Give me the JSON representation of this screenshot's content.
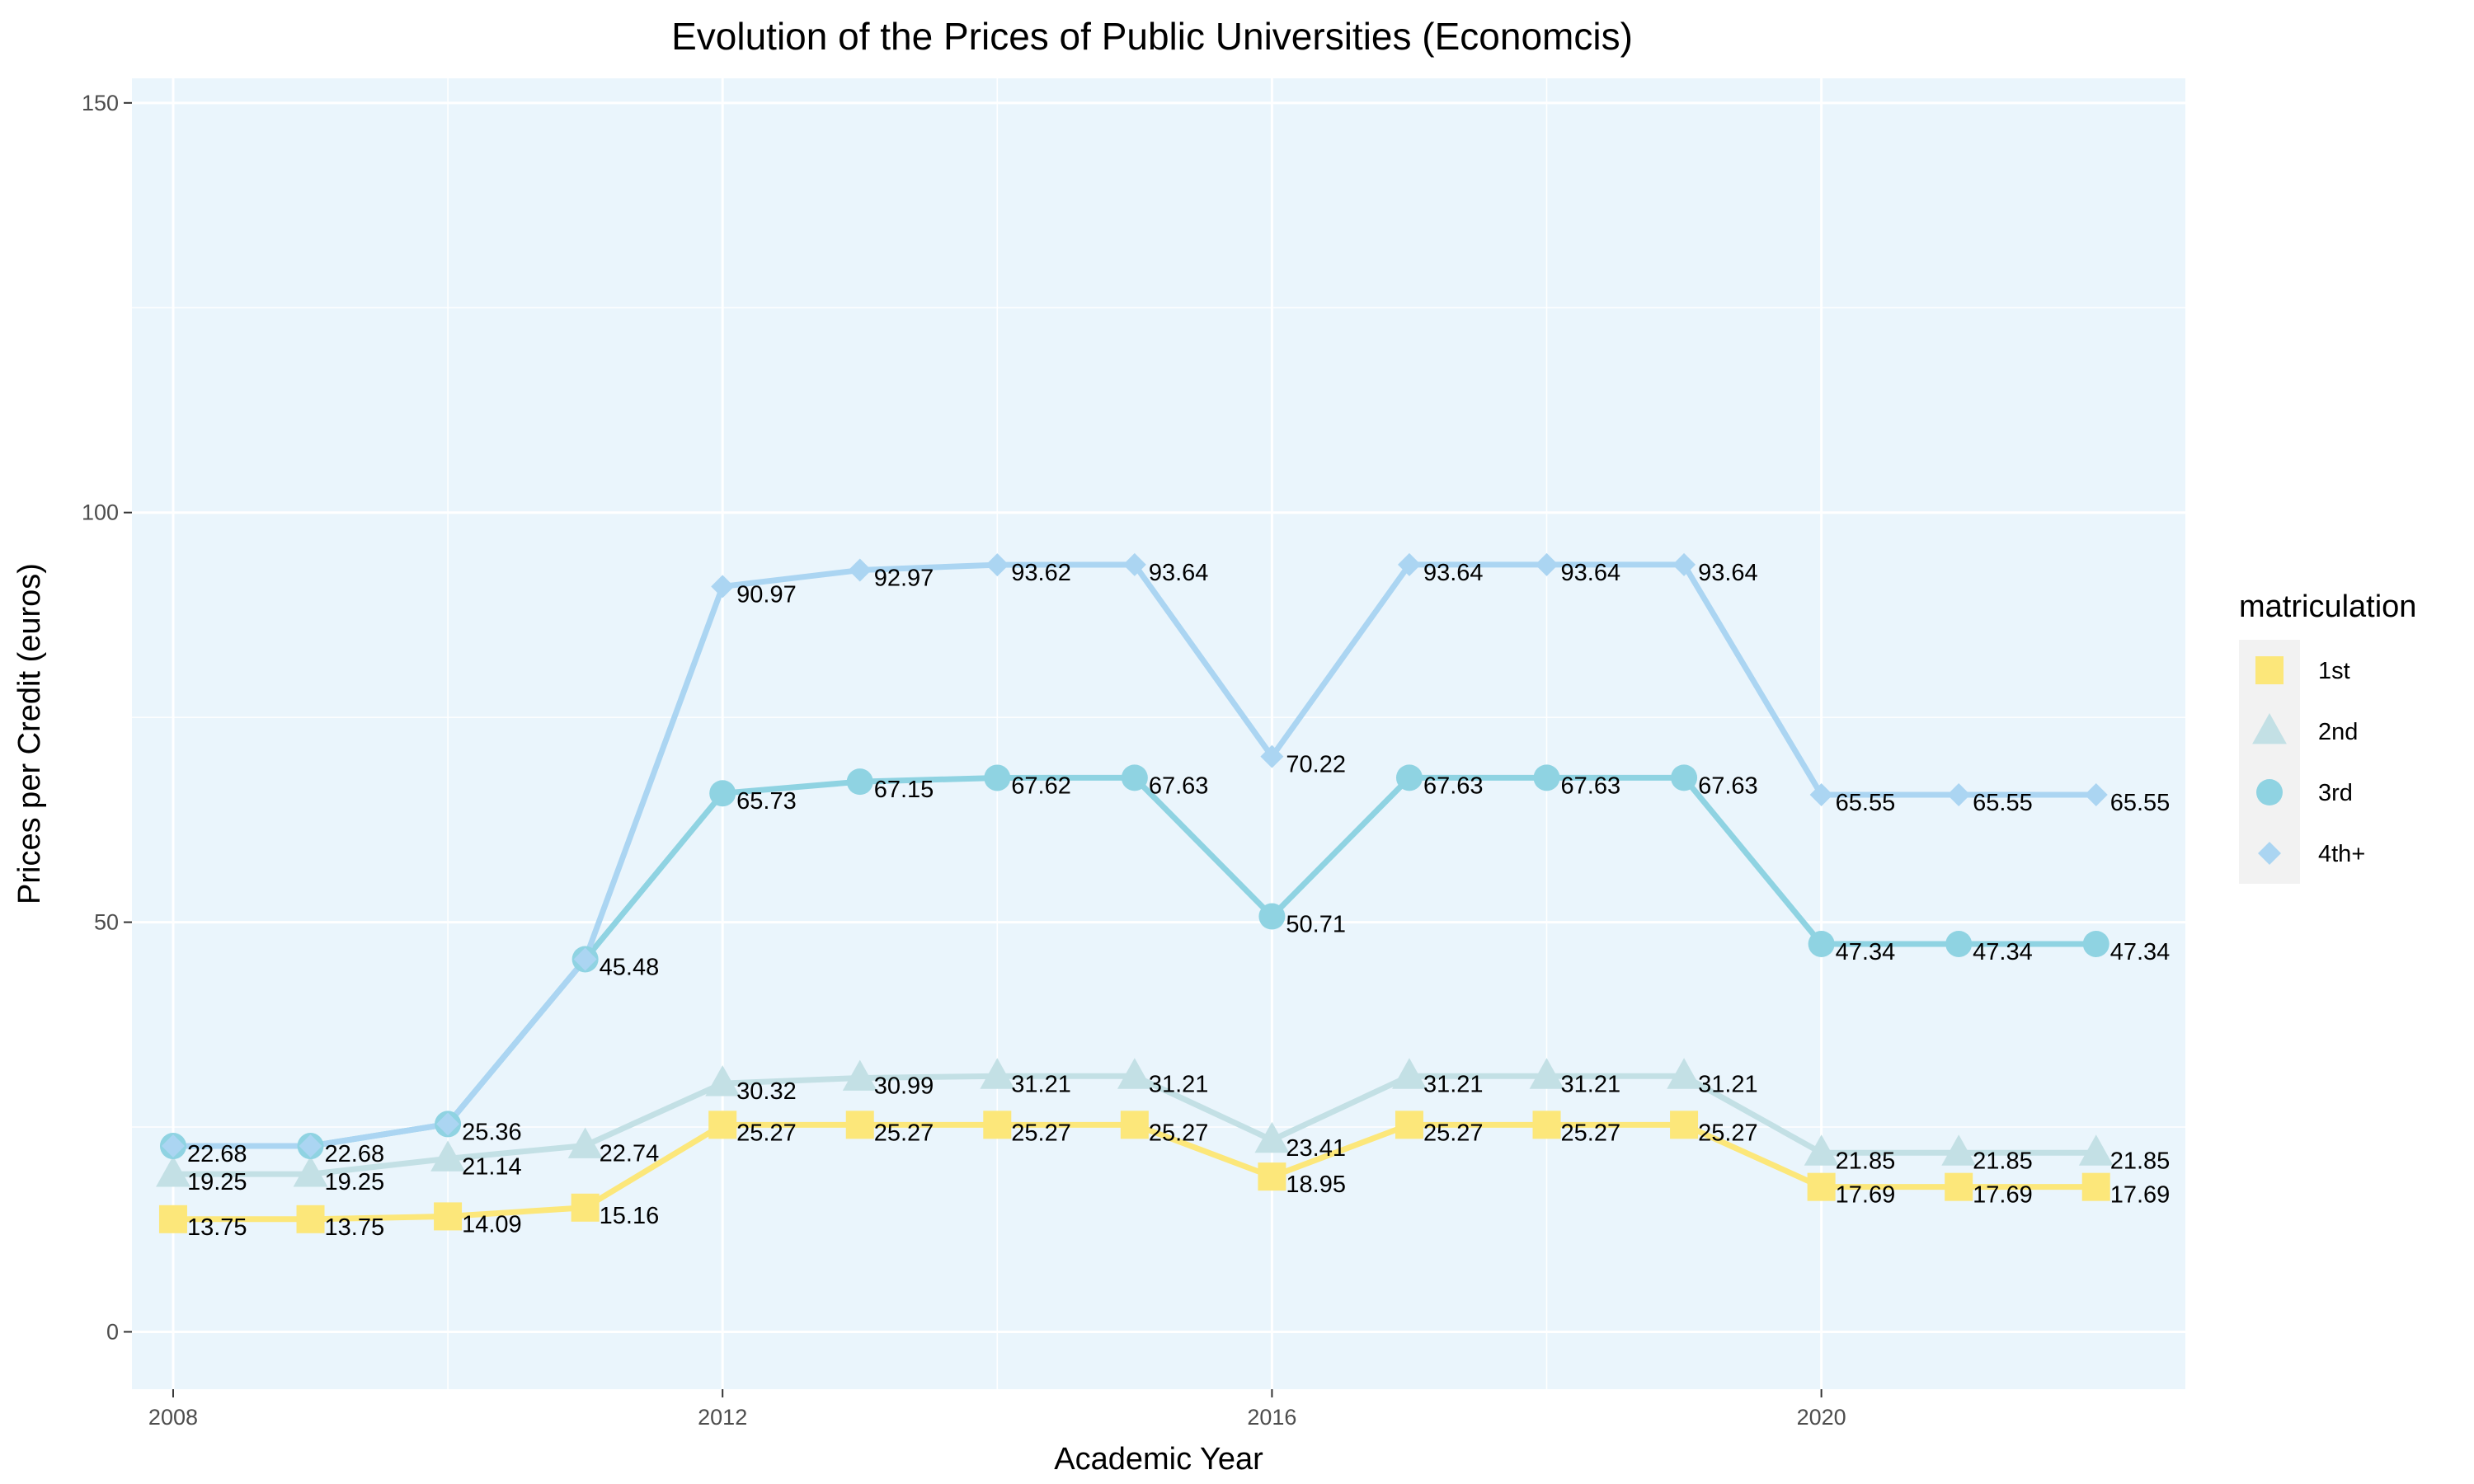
{
  "chart_data": {
    "type": "line",
    "title": "Evolution of the Prices of Public Universities (Economcis)",
    "xlabel": "Academic Year",
    "ylabel": "Prices per Credit (euros)",
    "xlim": [
      2007.7,
      2022.65
    ],
    "ylim": [
      -7,
      153
    ],
    "x_ticks": [
      2008,
      2012,
      2016,
      2020
    ],
    "y_ticks": [
      0,
      50,
      100,
      150
    ],
    "grid": true,
    "legend": {
      "title": "matriculation",
      "position": "right"
    },
    "x": [
      2008,
      2009,
      2010,
      2011,
      2012,
      2013,
      2014,
      2015,
      2016,
      2017,
      2018,
      2019,
      2020,
      2021,
      2022
    ],
    "series": [
      {
        "name": "1st",
        "color": "#fce77a",
        "marker": "square",
        "values": [
          13.75,
          13.75,
          14.09,
          15.16,
          25.27,
          25.27,
          25.27,
          25.27,
          18.95,
          25.27,
          25.27,
          25.27,
          17.69,
          17.69,
          17.69
        ],
        "labels": [
          "13.75",
          "13.75",
          "14.09",
          "15.16",
          "25.27",
          "25.27",
          "25.27",
          "25.27",
          "18.95",
          "25.27",
          "25.27",
          "25.27",
          "17.69",
          "17.69",
          "17.69"
        ]
      },
      {
        "name": "2nd",
        "color": "#c3e0e5",
        "marker": "triangle",
        "values": [
          19.25,
          19.25,
          21.14,
          22.74,
          30.32,
          30.99,
          31.21,
          31.21,
          23.41,
          31.21,
          31.21,
          31.21,
          21.85,
          21.85,
          21.85
        ],
        "labels": [
          "19.25",
          "19.25",
          "21.14",
          "22.74",
          "30.32",
          "30.99",
          "31.21",
          "31.21",
          "23.41",
          "31.21",
          "31.21",
          "31.21",
          "21.85",
          "21.85",
          "21.85"
        ]
      },
      {
        "name": "3rd",
        "color": "#8fd3e2",
        "marker": "circle",
        "values": [
          22.68,
          22.68,
          25.36,
          45.48,
          65.73,
          67.15,
          67.62,
          67.63,
          50.71,
          67.63,
          67.63,
          67.63,
          47.34,
          47.34,
          47.34
        ],
        "labels": [
          "22.68",
          "22.68",
          "25.36",
          "45.48",
          "65.73",
          "67.15",
          "67.62",
          "67.63",
          "50.71",
          "67.63",
          "67.63",
          "67.63",
          "47.34",
          "47.34",
          "47.34"
        ]
      },
      {
        "name": "4th+",
        "color": "#abd5f2",
        "marker": "diamond",
        "values": [
          22.68,
          22.68,
          25.36,
          45.48,
          90.97,
          92.97,
          93.62,
          93.64,
          70.22,
          93.64,
          93.64,
          93.64,
          65.55,
          65.55,
          65.55
        ],
        "labels": [
          "",
          "",
          "",
          "",
          "90.97",
          "92.97",
          "93.62",
          "93.64",
          "70.22",
          "93.64",
          "93.64",
          "93.64",
          "65.55",
          "65.55",
          "65.55"
        ]
      }
    ],
    "colors": {
      "panel_background": "#eaf5fc",
      "grid": "#ffffff",
      "legend_key_background": "#f2f2f2"
    }
  }
}
